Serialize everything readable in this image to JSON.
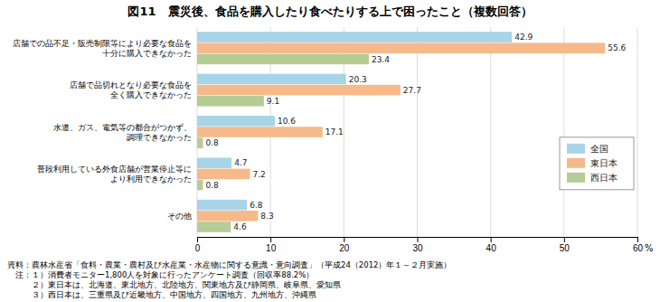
{
  "chart_data": {
    "type": "bar",
    "orientation": "horizontal",
    "title": "図11　震災後、食品を購入したり食べたりする上で困ったこと（複数回答）",
    "xlabel": "%",
    "categories": [
      "店舗での品不足・販売制限等により必要な食品を\n十分に購入できなかった",
      "店舗で品切れとなり必要な食品を\n全く購入できなかった",
      "水道、ガス、電気等の都合がつかず、\n調理できなかった",
      "普段利用している外食店舗が営業停止等に\nより利用できなかった",
      "その他"
    ],
    "series": [
      {
        "name": "全国",
        "color": "#a8d4e8",
        "values": [
          42.9,
          20.3,
          10.6,
          4.7,
          6.8
        ]
      },
      {
        "name": "東日本",
        "color": "#f5b98a",
        "values": [
          55.6,
          27.7,
          17.1,
          7.2,
          8.3
        ]
      },
      {
        "name": "西日本",
        "color": "#b5cc96",
        "values": [
          23.4,
          9.1,
          0.8,
          0.8,
          4.6
        ]
      }
    ],
    "xlim": [
      0,
      60
    ],
    "xticks": [
      0,
      10,
      20,
      30,
      40,
      50,
      60
    ],
    "grid": true,
    "legend": "right",
    "data_labels": true,
    "annotations": [
      "資料：農林水産省「食料・農業・農村及び水産業・水産物に関する意識・意向調査」（平成24（2012）年１～２月実施）",
      "　注：１）消費者モニター1,800人を対象に行ったアンケート調査（回収率88.2%）",
      "　　　２）東日本は、北海道、東北地方、北陸地方、関東地方及び静岡県、岐阜県、愛知県",
      "　　　３）西日本は、三重県及び近畿地方、中国地方、四国地方、九州地方、沖縄県"
    ]
  }
}
